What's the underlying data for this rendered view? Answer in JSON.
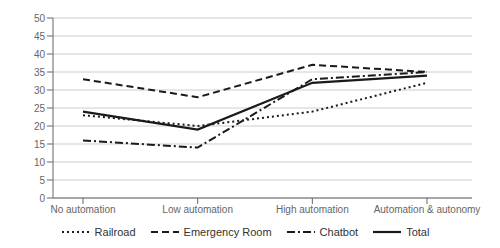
{
  "chart_data": {
    "type": "line",
    "categories": [
      "No automation",
      "Low automation",
      "High automation",
      "Automation & autonomy"
    ],
    "series": [
      {
        "name": "Railroad",
        "color": "#1a1a1a",
        "line_style": "dotted",
        "values": [
          23,
          20,
          24,
          32
        ]
      },
      {
        "name": "Emergency Room",
        "color": "#1a1a1a",
        "line_style": "dashed",
        "values": [
          33,
          28,
          37,
          35
        ]
      },
      {
        "name": "Chatbot",
        "color": "#1a1a1a",
        "line_style": "dashdot",
        "values": [
          16,
          14,
          33,
          35
        ]
      },
      {
        "name": "Total",
        "color": "#1a1a1a",
        "line_style": "solid",
        "values": [
          24,
          19,
          32,
          34
        ]
      }
    ],
    "ylim": [
      0,
      50
    ],
    "yticks": [
      0,
      5,
      10,
      15,
      20,
      25,
      30,
      35,
      40,
      45,
      50
    ],
    "grid": true,
    "legend": "bottom"
  }
}
